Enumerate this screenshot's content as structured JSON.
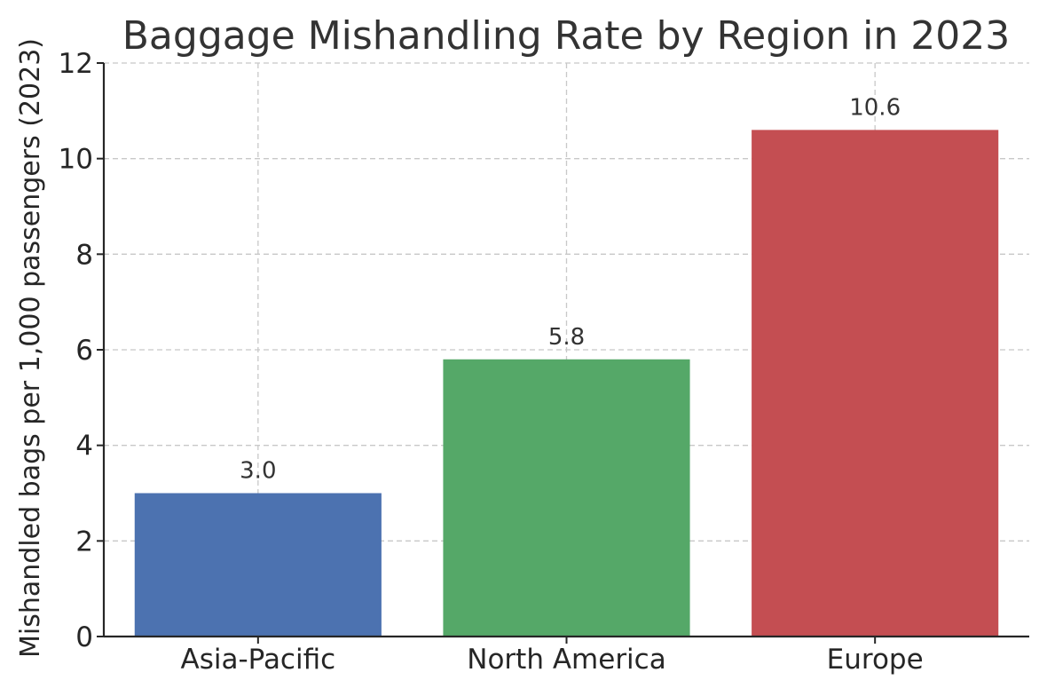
{
  "chart_data": {
    "type": "bar",
    "title": "Baggage Mishandling Rate by Region in 2023",
    "xlabel": "",
    "ylabel": "Mishandled bags per 1,000 passengers (2023)",
    "categories": [
      "Asia-Pacific",
      "North America",
      "Europe"
    ],
    "values": [
      3.0,
      5.8,
      10.6
    ],
    "value_labels": [
      "3.0",
      "5.8",
      "10.6"
    ],
    "colors": [
      "#4c72b0",
      "#55a868",
      "#c44e52"
    ],
    "ylim": [
      0,
      12
    ],
    "yticks": [
      0,
      2,
      4,
      6,
      8,
      10,
      12
    ],
    "grid": true,
    "legend": "none"
  }
}
